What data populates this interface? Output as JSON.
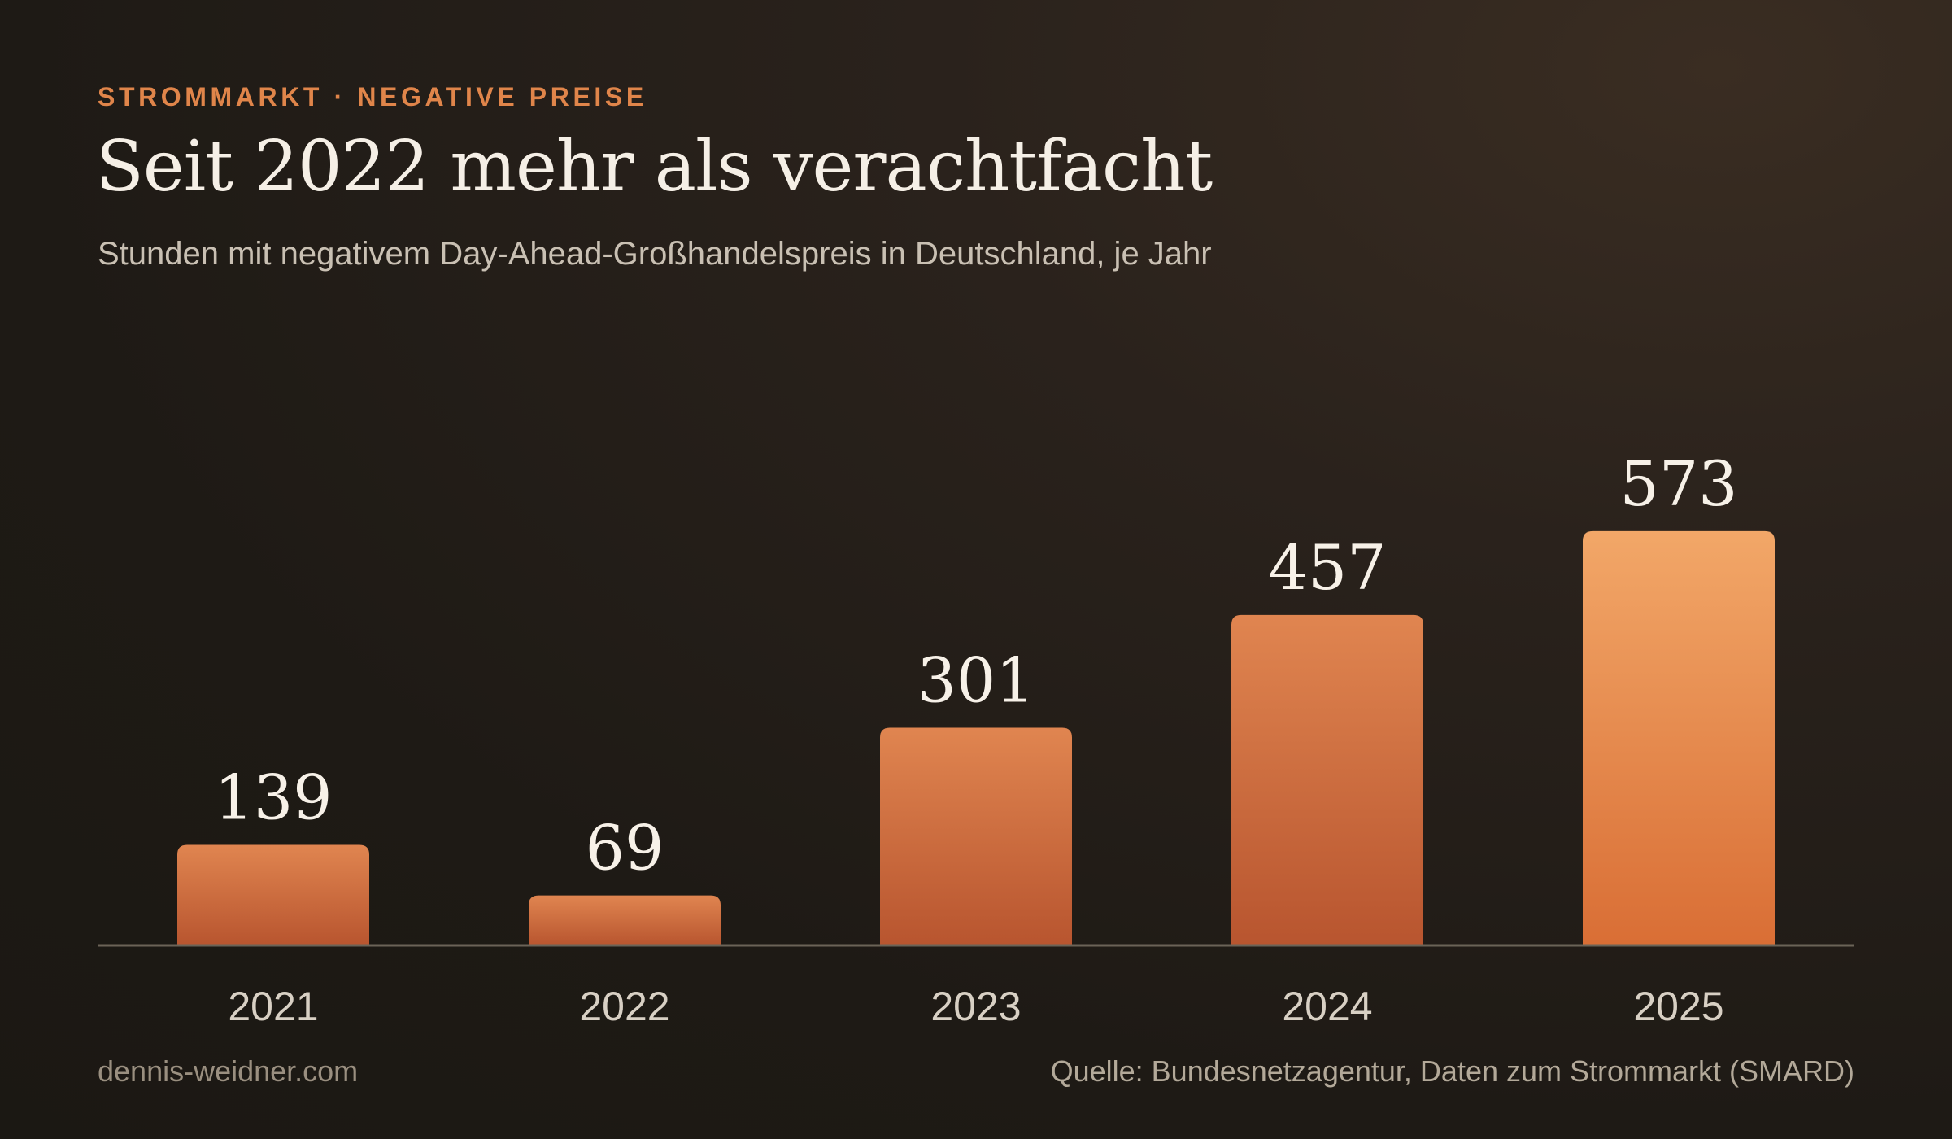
{
  "header": {
    "kicker": "STROMMARKT · NEGATIVE PREISE",
    "title": "Seit 2022 mehr als verachtfacht",
    "subtitle": "Stunden mit negativem Day-Ahead-Großhandelspreis in Deutschland, je Jahr"
  },
  "footer": {
    "site": "dennis-weidner.com",
    "source": "Quelle: Bundesnetzagentur, Daten zum Strommarkt (SMARD)"
  },
  "colors": {
    "accent": "#e0854a",
    "bar_top": "#e08550",
    "bar_bottom": "#b8552f",
    "bar_highlight_top": "#f2a768",
    "bar_highlight_bottom": "#d96e35",
    "baseline": "#6b6357"
  },
  "chart_data": {
    "type": "bar",
    "categories": [
      "2021",
      "2022",
      "2023",
      "2024",
      "2025"
    ],
    "values": [
      139,
      69,
      301,
      457,
      573
    ],
    "data_labels": [
      "139",
      "69",
      "301",
      "457",
      "573"
    ],
    "highlight_index": 4,
    "ylim": [
      0,
      700
    ],
    "grid": false,
    "legend": "none",
    "xlabel": "",
    "ylabel": ""
  }
}
